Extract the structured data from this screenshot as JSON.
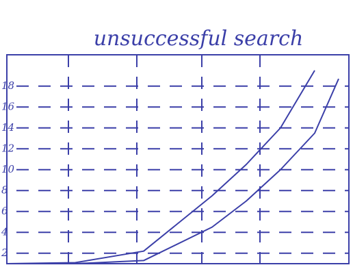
{
  "chart_data": {
    "type": "line",
    "title": "unsuccessful search",
    "x": [
      0,
      1,
      2,
      3,
      3.5,
      4,
      4.5,
      4.85
    ],
    "xlim": [
      0,
      5
    ],
    "ylim": [
      1,
      21
    ],
    "yticks": [
      2,
      4,
      6,
      8,
      10,
      12,
      14,
      16,
      18
    ],
    "grid": true,
    "series": [
      {
        "color": "#3b3fa8",
        "values": [
          1,
          1.1,
          2.2,
          7.5,
          10.5,
          14,
          19.5,
          null
        ]
      },
      {
        "color": "#3b3fa8",
        "values": [
          1,
          1,
          1.3,
          4.5,
          7,
          10,
          13.5,
          18.7
        ]
      }
    ]
  }
}
